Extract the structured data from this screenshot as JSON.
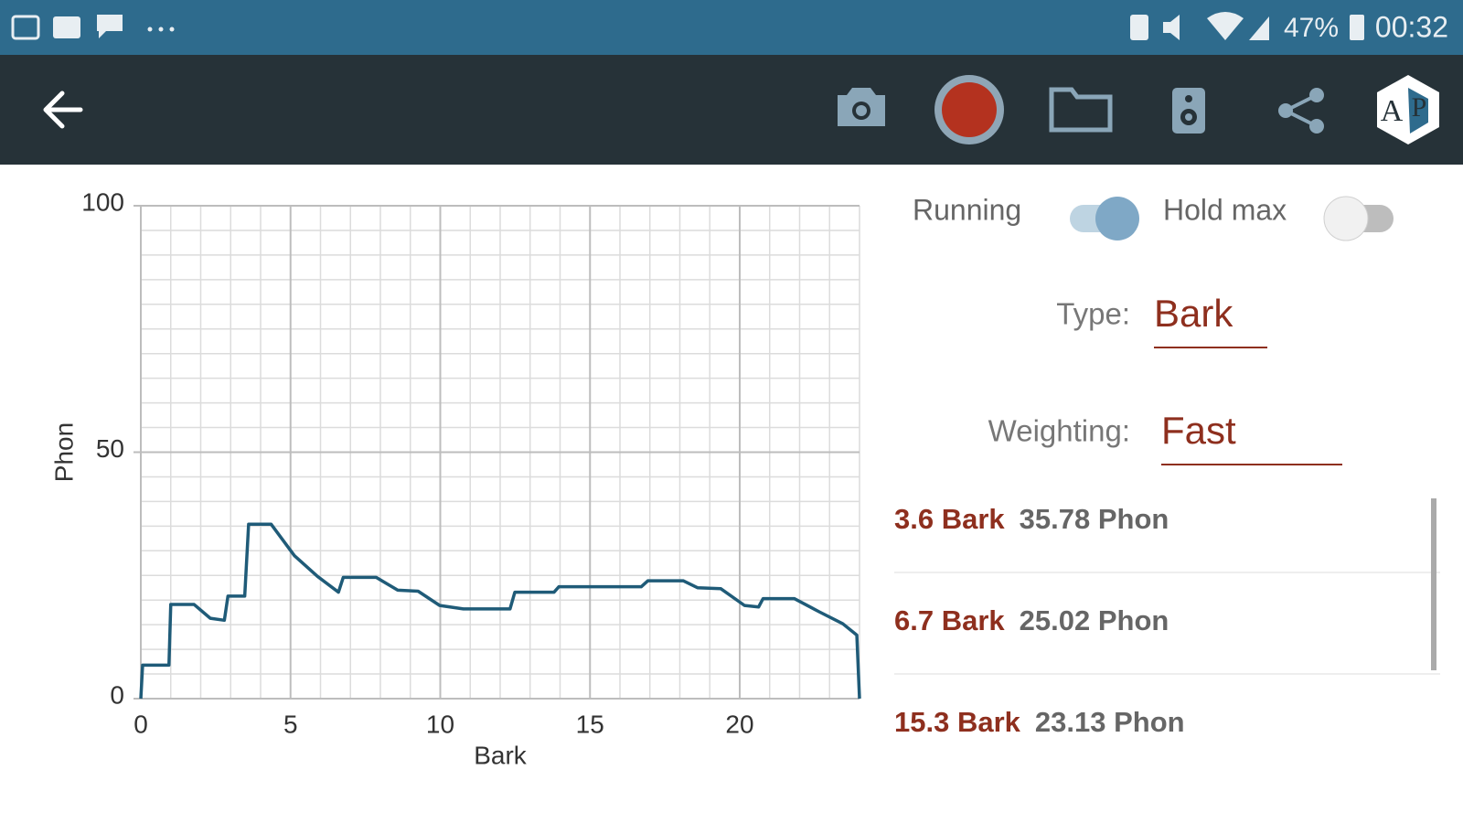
{
  "status_bar": {
    "battery": "47%",
    "time": "00:32"
  },
  "logo": {
    "left": "A",
    "right": "P"
  },
  "controls": {
    "running_label": "Running",
    "running_on": true,
    "hold_max_label": "Hold max",
    "hold_max_on": false,
    "type_label": "Type:",
    "type_value": "Bark",
    "weighting_label": "Weighting:",
    "weighting_value": "Fast"
  },
  "peaks": [
    {
      "bark": "3.6 Bark",
      "phon": "35.78 Phon"
    },
    {
      "bark": "6.7 Bark",
      "phon": "25.02 Phon"
    },
    {
      "bark": "15.3 Bark",
      "phon": "23.13 Phon"
    }
  ],
  "chart_data": {
    "type": "line",
    "x_label": "Bark",
    "y_label": "Phon",
    "xlim": [
      0,
      24
    ],
    "ylim": [
      0,
      100
    ],
    "xticks": [
      0,
      5,
      10,
      15,
      20
    ],
    "yticks": [
      0,
      50,
      100
    ],
    "grid": true,
    "x_minor_step": 1,
    "y_minor_step": 5,
    "series": [
      {
        "color": "#1f5b78",
        "x": [
          0,
          0.06,
          0.94,
          1.0,
          1.78,
          2.32,
          2.79,
          2.91,
          3.47,
          3.6,
          4.35,
          5.13,
          5.9,
          6.6,
          6.76,
          7.86,
          8.58,
          9.26,
          9.98,
          10.77,
          12.33,
          12.49,
          13.8,
          13.96,
          15.3,
          16.71,
          16.93,
          18.12,
          18.59,
          19.37,
          20.16,
          20.63,
          20.78,
          21.82,
          22.66,
          23.44,
          23.91,
          24
        ],
        "values": [
          0,
          6.8,
          6.8,
          19.1,
          19.1,
          16.3,
          15.9,
          20.8,
          20.8,
          35.4,
          35.4,
          29.0,
          24.8,
          21.6,
          24.6,
          24.6,
          22.0,
          21.8,
          18.9,
          18.2,
          18.2,
          21.6,
          21.6,
          22.7,
          22.7,
          22.7,
          23.9,
          23.9,
          22.5,
          22.3,
          18.9,
          18.6,
          20.3,
          20.3,
          17.6,
          15.2,
          12.9,
          0
        ]
      }
    ]
  }
}
